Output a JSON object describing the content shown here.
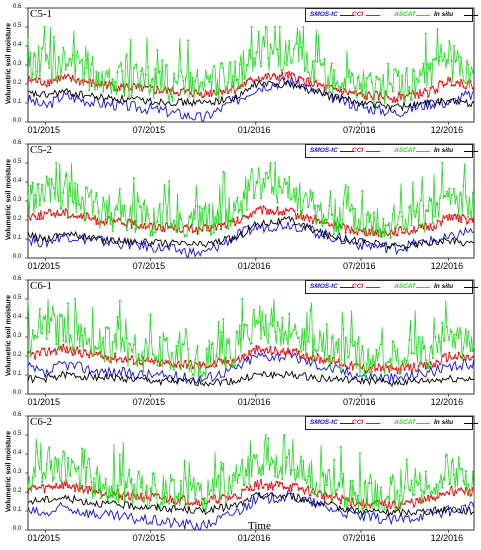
{
  "chart_data": [
    {
      "type": "line",
      "panel": "C5-1",
      "ylabel": "Volumetric soil moisture",
      "xlabel": "",
      "xticks": [
        "01/2015",
        "07/2015",
        "01/2016",
        "07/2016",
        "12/2016"
      ],
      "yticks": [
        "0.0",
        "0.1",
        "0.2",
        "0.3",
        "0.4",
        "0.5",
        "0.6"
      ],
      "ylim": [
        0,
        0.6
      ],
      "xlim": [
        "2014-12-01",
        "2017-01-15"
      ],
      "legend": [
        "SMOS-IC",
        "CCI",
        "ASCAT",
        "In situ"
      ],
      "series": [
        {
          "name": "SMOS-IC",
          "color": "#1010ee",
          "x": [
            "2014-12",
            "2015-01",
            "2015-02",
            "2015-04",
            "2015-07",
            "2015-10",
            "2015-12",
            "2016-01",
            "2016-03",
            "2016-05",
            "2016-07",
            "2016-09",
            "2016-11",
            "2016-12",
            "2017-01"
          ],
          "values": [
            0.12,
            0.08,
            0.14,
            0.1,
            0.07,
            0.02,
            0.12,
            0.18,
            0.22,
            0.14,
            0.08,
            0.05,
            0.1,
            0.1,
            0.14
          ]
        },
        {
          "name": "CCI",
          "color": "#ee1010",
          "x": [
            "2014-12",
            "2015-01",
            "2015-02",
            "2015-04",
            "2015-07",
            "2015-10",
            "2015-12",
            "2016-01",
            "2016-03",
            "2016-05",
            "2016-07",
            "2016-09",
            "2016-11",
            "2016-12",
            "2017-01"
          ],
          "values": [
            0.22,
            0.21,
            0.23,
            0.2,
            0.17,
            0.15,
            0.18,
            0.23,
            0.24,
            0.18,
            0.14,
            0.13,
            0.16,
            0.22,
            0.2
          ]
        },
        {
          "name": "ASCAT",
          "color": "#22dd22",
          "x": [
            "2014-12",
            "2015-01",
            "2015-02",
            "2015-04",
            "2015-07",
            "2015-10",
            "2015-12",
            "2016-01",
            "2016-03",
            "2016-05",
            "2016-07",
            "2016-09",
            "2016-11",
            "2016-12",
            "2017-01"
          ],
          "values": [
            0.25,
            0.3,
            0.28,
            0.22,
            0.18,
            0.15,
            0.22,
            0.35,
            0.3,
            0.2,
            0.15,
            0.15,
            0.2,
            0.3,
            0.22
          ]
        },
        {
          "name": "In situ",
          "color": "#000000",
          "x": [
            "2014-12",
            "2015-01",
            "2015-02",
            "2015-04",
            "2015-07",
            "2015-10",
            "2015-12",
            "2016-01",
            "2016-03",
            "2016-05",
            "2016-07",
            "2016-09",
            "2016-11",
            "2016-12",
            "2017-01"
          ],
          "values": [
            0.15,
            0.14,
            0.16,
            0.13,
            0.11,
            0.1,
            0.13,
            0.2,
            0.2,
            0.14,
            0.1,
            0.08,
            0.1,
            0.11,
            0.1
          ]
        }
      ]
    },
    {
      "type": "line",
      "panel": "C5-2",
      "ylabel": "Volumetric soil moisture",
      "xlabel": "",
      "xticks": [
        "01/2015",
        "07/2015",
        "01/2016",
        "07/2016",
        "12/2016"
      ],
      "yticks": [
        "0.0",
        "0.1",
        "0.2",
        "0.3",
        "0.4",
        "0.5",
        "0.6"
      ],
      "ylim": [
        0,
        0.6
      ],
      "xlim": [
        "2014-12-01",
        "2017-01-15"
      ],
      "legend": [
        "SMOS-IC",
        "CCI",
        "ASCAT",
        "In situ"
      ],
      "series": [
        {
          "name": "SMOS-IC",
          "color": "#1010ee",
          "x": [
            "2014-12",
            "2015-01",
            "2015-02",
            "2015-04",
            "2015-07",
            "2015-10",
            "2015-12",
            "2016-01",
            "2016-03",
            "2016-05",
            "2016-07",
            "2016-09",
            "2016-11",
            "2016-12",
            "2017-01"
          ],
          "values": [
            0.1,
            0.08,
            0.12,
            0.09,
            0.06,
            0.02,
            0.12,
            0.16,
            0.18,
            0.12,
            0.07,
            0.05,
            0.09,
            0.1,
            0.14
          ]
        },
        {
          "name": "CCI",
          "color": "#ee1010",
          "x": [
            "2014-12",
            "2015-01",
            "2015-02",
            "2015-04",
            "2015-07",
            "2015-10",
            "2015-12",
            "2016-01",
            "2016-03",
            "2016-05",
            "2016-07",
            "2016-09",
            "2016-11",
            "2016-12",
            "2017-01"
          ],
          "values": [
            0.22,
            0.23,
            0.24,
            0.2,
            0.17,
            0.15,
            0.19,
            0.25,
            0.24,
            0.18,
            0.14,
            0.14,
            0.16,
            0.22,
            0.2
          ]
        },
        {
          "name": "ASCAT",
          "color": "#22dd22",
          "x": [
            "2014-12",
            "2015-01",
            "2015-02",
            "2015-04",
            "2015-07",
            "2015-10",
            "2015-12",
            "2016-01",
            "2016-03",
            "2016-05",
            "2016-07",
            "2016-09",
            "2016-11",
            "2016-12",
            "2017-01"
          ],
          "values": [
            0.25,
            0.32,
            0.3,
            0.22,
            0.18,
            0.16,
            0.24,
            0.38,
            0.3,
            0.2,
            0.16,
            0.16,
            0.2,
            0.3,
            0.22
          ]
        },
        {
          "name": "In situ",
          "color": "#000000",
          "x": [
            "2014-12",
            "2015-01",
            "2015-02",
            "2015-04",
            "2015-07",
            "2015-10",
            "2015-12",
            "2016-01",
            "2016-03",
            "2016-05",
            "2016-07",
            "2016-09",
            "2016-11",
            "2016-12",
            "2017-01"
          ],
          "values": [
            0.12,
            0.1,
            0.13,
            0.1,
            0.08,
            0.07,
            0.11,
            0.18,
            0.2,
            0.12,
            0.09,
            0.06,
            0.08,
            0.09,
            0.08
          ]
        }
      ]
    },
    {
      "type": "line",
      "panel": "C6-1",
      "ylabel": "Volumetric soil moisture",
      "xlabel": "",
      "xticks": [
        "01/2015",
        "07/2015",
        "01/2016",
        "07/2016",
        "12/2016"
      ],
      "yticks": [
        "0.0",
        "0.1",
        "0.2",
        "0.3",
        "0.4",
        "0.5",
        "0.6"
      ],
      "ylim": [
        0,
        0.6
      ],
      "xlim": [
        "2014-12-01",
        "2017-01-15"
      ],
      "legend": [
        "SMOS-IC",
        "CCI",
        "ASCAT",
        "In situ"
      ],
      "series": [
        {
          "name": "SMOS-IC",
          "color": "#1010ee",
          "x": [
            "2014-12",
            "2015-01",
            "2015-02",
            "2015-04",
            "2015-07",
            "2015-10",
            "2015-12",
            "2016-01",
            "2016-03",
            "2016-05",
            "2016-07",
            "2016-09",
            "2016-11",
            "2016-12",
            "2017-01"
          ],
          "values": [
            0.14,
            0.1,
            0.16,
            0.12,
            0.1,
            0.08,
            0.14,
            0.2,
            0.2,
            0.14,
            0.1,
            0.08,
            0.12,
            0.13,
            0.16
          ]
        },
        {
          "name": "CCI",
          "color": "#ee1010",
          "x": [
            "2014-12",
            "2015-01",
            "2015-02",
            "2015-04",
            "2015-07",
            "2015-10",
            "2015-12",
            "2016-01",
            "2016-03",
            "2016-05",
            "2016-07",
            "2016-09",
            "2016-11",
            "2016-12",
            "2017-01"
          ],
          "values": [
            0.2,
            0.22,
            0.24,
            0.2,
            0.17,
            0.15,
            0.18,
            0.23,
            0.22,
            0.18,
            0.14,
            0.13,
            0.15,
            0.2,
            0.19
          ]
        },
        {
          "name": "ASCAT",
          "color": "#22dd22",
          "x": [
            "2014-12",
            "2015-01",
            "2015-02",
            "2015-04",
            "2015-07",
            "2015-10",
            "2015-12",
            "2016-01",
            "2016-03",
            "2016-05",
            "2016-07",
            "2016-09",
            "2016-11",
            "2016-12",
            "2017-01"
          ],
          "values": [
            0.25,
            0.32,
            0.3,
            0.24,
            0.18,
            0.15,
            0.22,
            0.36,
            0.3,
            0.2,
            0.15,
            0.15,
            0.2,
            0.28,
            0.22
          ]
        },
        {
          "name": "In situ",
          "color": "#000000",
          "x": [
            "2014-12",
            "2015-01",
            "2015-02",
            "2015-04",
            "2015-07",
            "2015-10",
            "2015-12",
            "2016-01",
            "2016-03",
            "2016-05",
            "2016-07",
            "2016-09",
            "2016-11",
            "2016-12",
            "2017-01"
          ],
          "values": [
            0.08,
            0.08,
            0.1,
            0.09,
            0.07,
            0.06,
            0.07,
            0.1,
            0.1,
            0.08,
            0.07,
            0.06,
            0.07,
            0.08,
            0.08
          ]
        }
      ]
    },
    {
      "type": "line",
      "panel": "C6-2",
      "ylabel": "Volumetric soil moisture",
      "xlabel": "Time",
      "xticks": [
        "01/2015",
        "07/2015",
        "01/2016",
        "07/2016",
        "12/2016"
      ],
      "yticks": [
        "0.0",
        "0.1",
        "0.2",
        "0.3",
        "0.4",
        "0.5",
        "0.6"
      ],
      "ylim": [
        0,
        0.6
      ],
      "xlim": [
        "2014-12-01",
        "2017-01-15"
      ],
      "legend": [
        "SMOS-IC",
        "CCI",
        "ASCAT",
        "In situ"
      ],
      "series": [
        {
          "name": "SMOS-IC",
          "color": "#1010ee",
          "x": [
            "2014-12",
            "2015-01",
            "2015-02",
            "2015-04",
            "2015-07",
            "2015-10",
            "2015-12",
            "2016-01",
            "2016-03",
            "2016-05",
            "2016-07",
            "2016-09",
            "2016-11",
            "2016-12",
            "2017-01"
          ],
          "values": [
            0.1,
            0.08,
            0.12,
            0.08,
            0.05,
            0.02,
            0.1,
            0.16,
            0.18,
            0.12,
            0.07,
            0.05,
            0.09,
            0.1,
            0.12
          ]
        },
        {
          "name": "CCI",
          "color": "#ee1010",
          "x": [
            "2014-12",
            "2015-01",
            "2015-02",
            "2015-04",
            "2015-07",
            "2015-10",
            "2015-12",
            "2016-01",
            "2016-03",
            "2016-05",
            "2016-07",
            "2016-09",
            "2016-11",
            "2016-12",
            "2017-01"
          ],
          "values": [
            0.22,
            0.22,
            0.24,
            0.2,
            0.17,
            0.15,
            0.18,
            0.24,
            0.23,
            0.18,
            0.14,
            0.13,
            0.16,
            0.21,
            0.2
          ]
        },
        {
          "name": "ASCAT",
          "color": "#22dd22",
          "x": [
            "2014-12",
            "2015-01",
            "2015-02",
            "2015-04",
            "2015-07",
            "2015-10",
            "2015-12",
            "2016-01",
            "2016-03",
            "2016-05",
            "2016-07",
            "2016-09",
            "2016-11",
            "2016-12",
            "2017-01"
          ],
          "values": [
            0.25,
            0.32,
            0.3,
            0.22,
            0.18,
            0.15,
            0.22,
            0.36,
            0.3,
            0.2,
            0.15,
            0.15,
            0.2,
            0.3,
            0.22
          ]
        },
        {
          "name": "In situ",
          "color": "#000000",
          "x": [
            "2014-12",
            "2015-01",
            "2015-02",
            "2015-04",
            "2015-07",
            "2015-10",
            "2015-12",
            "2016-01",
            "2016-03",
            "2016-05",
            "2016-07",
            "2016-09",
            "2016-11",
            "2016-12",
            "2017-01"
          ],
          "values": [
            0.15,
            0.16,
            0.17,
            0.14,
            0.12,
            0.1,
            0.13,
            0.18,
            0.18,
            0.13,
            0.1,
            0.09,
            0.1,
            0.11,
            0.1
          ]
        }
      ]
    }
  ]
}
